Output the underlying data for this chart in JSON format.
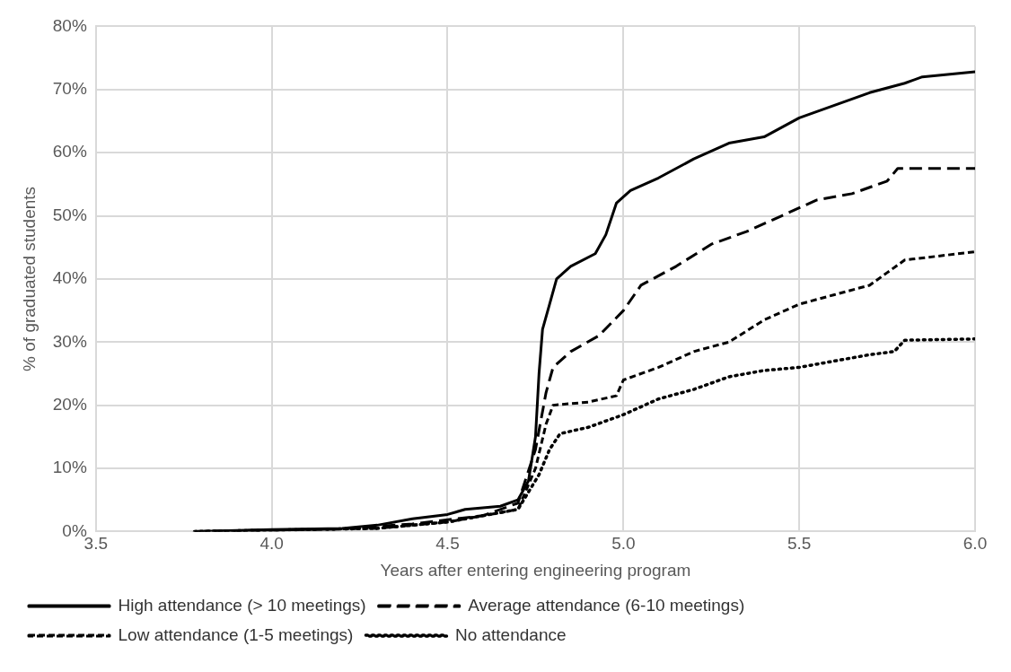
{
  "chart_data": {
    "type": "line",
    "xlabel": "Years after entering engineering program",
    "ylabel": "% of graduated students",
    "xlim": [
      3.5,
      6.0
    ],
    "xticks": [
      3.5,
      {
        "value": 4,
        "label": "4.0"
      },
      4.5,
      {
        "value": 5,
        "label": "5.0"
      },
      5.5,
      {
        "value": 6,
        "label": "6.0"
      }
    ],
    "ylim": [
      0,
      80
    ],
    "yticks": [
      {
        "value": 0,
        "label": "0%"
      },
      {
        "value": 10,
        "label": "10%"
      },
      {
        "value": 20,
        "label": "20%"
      },
      {
        "value": 30,
        "label": "30%"
      },
      {
        "value": 40,
        "label": "40%"
      },
      {
        "value": 50,
        "label": "50%"
      },
      {
        "value": 60,
        "label": "60%"
      },
      {
        "value": 70,
        "label": "70%"
      },
      {
        "value": 80,
        "label": "80%"
      }
    ],
    "grid": true,
    "legend": "bottom",
    "marker": "none",
    "series": [
      {
        "name": "High attendance (> 10 meetings)",
        "color": "#000000",
        "line_style": "solid",
        "x": [
          3.78,
          4.0,
          4.2,
          4.3,
          4.4,
          4.5,
          4.55,
          4.65,
          4.7,
          4.73,
          4.75,
          4.76,
          4.77,
          4.79,
          4.81,
          4.85,
          4.92,
          4.95,
          4.98,
          5.02,
          5.1,
          5.2,
          5.3,
          5.4,
          5.5,
          5.6,
          5.7,
          5.8,
          5.85,
          6.0
        ],
        "values": [
          0,
          0.3,
          0.5,
          1,
          2,
          2.7,
          3.5,
          4,
          5,
          8,
          15,
          25,
          32,
          36,
          40,
          42,
          44,
          47,
          52,
          54,
          56,
          59,
          61.5,
          62.5,
          65.5,
          67.5,
          69.5,
          71,
          72,
          72.8
        ]
      },
      {
        "name": "Average attendance (6-10 meetings)",
        "color": "#000000",
        "line_style": "dashed",
        "x": [
          3.78,
          4.2,
          4.4,
          4.6,
          4.7,
          4.75,
          4.78,
          4.8,
          4.85,
          4.93,
          5.0,
          5.05,
          5.15,
          5.25,
          5.35,
          5.45,
          5.55,
          5.65,
          5.75,
          5.78,
          6.0
        ],
        "values": [
          0,
          0.4,
          1.2,
          2.5,
          4.5,
          13,
          22,
          26,
          28.5,
          31,
          35,
          39,
          42,
          45.5,
          47.5,
          50,
          52.5,
          53.5,
          55.5,
          57.5,
          57.5
        ]
      },
      {
        "name": "Low attendance (1-5 meetings)",
        "color": "#000000",
        "line_style": "dashed",
        "x": [
          3.78,
          4.3,
          4.5,
          4.7,
          4.75,
          4.78,
          4.8,
          4.9,
          4.98,
          5.0,
          5.1,
          5.2,
          5.3,
          5.4,
          5.5,
          5.6,
          5.7,
          5.75,
          5.8,
          6.0
        ],
        "values": [
          0,
          0.5,
          1.5,
          3.5,
          10,
          17,
          20,
          20.5,
          21.5,
          24,
          26,
          28.5,
          30,
          33.5,
          36,
          37.5,
          39,
          41,
          43,
          44.3
        ]
      },
      {
        "name": "No attendance",
        "color": "#000000",
        "line_style": "dotted",
        "x": [
          3.78,
          4.3,
          4.5,
          4.7,
          4.76,
          4.79,
          4.82,
          4.9,
          5.0,
          5.1,
          5.2,
          5.3,
          5.4,
          5.5,
          5.6,
          5.7,
          5.77,
          5.8,
          6.0
        ],
        "values": [
          0,
          0.5,
          1.5,
          3.5,
          9,
          13,
          15.5,
          16.5,
          18.5,
          21,
          22.5,
          24.5,
          25.5,
          26,
          27,
          28,
          28.5,
          30.3,
          30.5
        ]
      }
    ]
  }
}
